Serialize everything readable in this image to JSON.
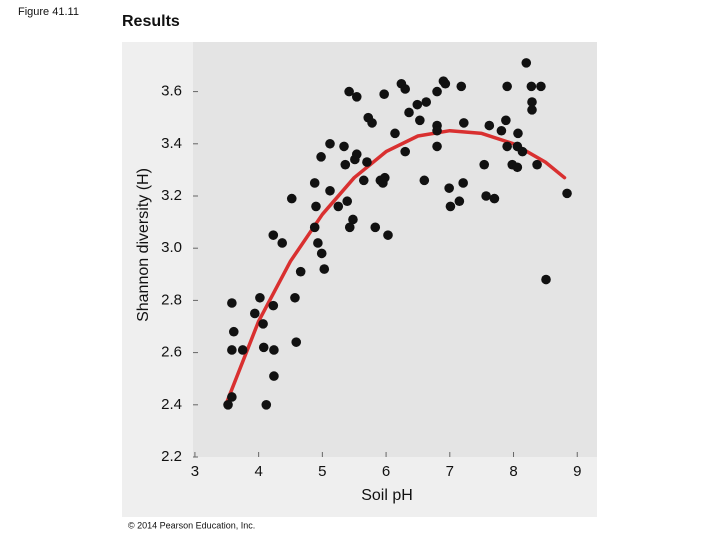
{
  "figure_label": "Figure 41.11",
  "copyright": "© 2014 Pearson Education, Inc.",
  "chart_data": {
    "type": "scatter",
    "title": "Results",
    "x_label": "Soil pH",
    "y_label": "Shannon diversity (H)",
    "xlim": [
      2.97,
      9.31
    ],
    "ylim": [
      2.2,
      3.79
    ],
    "xticks": [
      3,
      4,
      5,
      6,
      7,
      8,
      9
    ],
    "yticks": [
      2.2,
      2.4,
      2.6,
      2.8,
      {
        "value": 3,
        "label": "3.0"
      },
      3.2,
      3.4,
      3.6
    ],
    "color": "#111111",
    "x": [
      3.52,
      3.58,
      3.58,
      3.61,
      3.58,
      3.75,
      3.94,
      4.02,
      4.07,
      4.08,
      4.12,
      4.23,
      4.24,
      4.24,
      4.23,
      4.37,
      4.52,
      4.59,
      4.57,
      4.66,
      4.88,
      4.88,
      4.9,
      4.93,
      4.99,
      5.03,
      4.98,
      5.12,
      5.12,
      5.25,
      5.34,
      5.36,
      5.39,
      5.42,
      5.43,
      5.48,
      5.51,
      5.54,
      5.54,
      5.65,
      5.7,
      5.72,
      5.78,
      5.83,
      5.91,
      5.95,
      5.97,
      5.98,
      6.03,
      6.14,
      6.24,
      6.3,
      6.3,
      6.36,
      6.49,
      6.53,
      6.63,
      6.6,
      6.8,
      6.8,
      6.8,
      6.8,
      6.9,
      6.93,
      6.99,
      7.01,
      7.15,
      7.18,
      7.21,
      7.22,
      7.54,
      7.57,
      7.62,
      7.7,
      7.81,
      7.88,
      7.9,
      7.9,
      7.98,
      8.06,
      8.07,
      8.06,
      8.14,
      8.2,
      8.28,
      8.29,
      8.29,
      8.37,
      8.43,
      8.51,
      8.84
    ],
    "values": [
      2.4,
      2.43,
      2.79,
      2.68,
      2.61,
      2.61,
      2.75,
      2.81,
      2.71,
      2.62,
      2.4,
      2.78,
      2.61,
      2.51,
      3.05,
      3.02,
      3.19,
      2.64,
      2.81,
      2.91,
      3.08,
      3.25,
      3.16,
      3.02,
      2.98,
      2.92,
      3.35,
      3.4,
      3.22,
      3.16,
      3.39,
      3.32,
      3.18,
      3.6,
      3.08,
      3.11,
      3.34,
      3.36,
      3.58,
      3.26,
      3.33,
      3.5,
      3.48,
      3.08,
      3.26,
      3.25,
      3.59,
      3.27,
      3.05,
      3.44,
      3.63,
      3.61,
      3.37,
      3.52,
      3.55,
      3.49,
      3.56,
      3.26,
      3.6,
      3.47,
      3.45,
      3.39,
      3.64,
      3.63,
      3.23,
      3.16,
      3.18,
      3.62,
      3.25,
      3.48,
      3.32,
      3.2,
      3.47,
      3.19,
      3.45,
      3.49,
      3.62,
      3.39,
      3.32,
      3.39,
      3.44,
      3.31,
      3.37,
      3.71,
      3.62,
      3.56,
      3.53,
      3.32,
      3.62,
      2.88,
      3.21
    ],
    "fit": {
      "color": "#d93030",
      "x": [
        3.5,
        4,
        4.5,
        5,
        5.5,
        6,
        6.5,
        7,
        7.5,
        8,
        8.5,
        8.8
      ],
      "values": [
        2.41,
        2.72,
        2.95,
        3.13,
        3.27,
        3.37,
        3.43,
        3.45,
        3.44,
        3.4,
        3.33,
        3.27
      ]
    }
  }
}
